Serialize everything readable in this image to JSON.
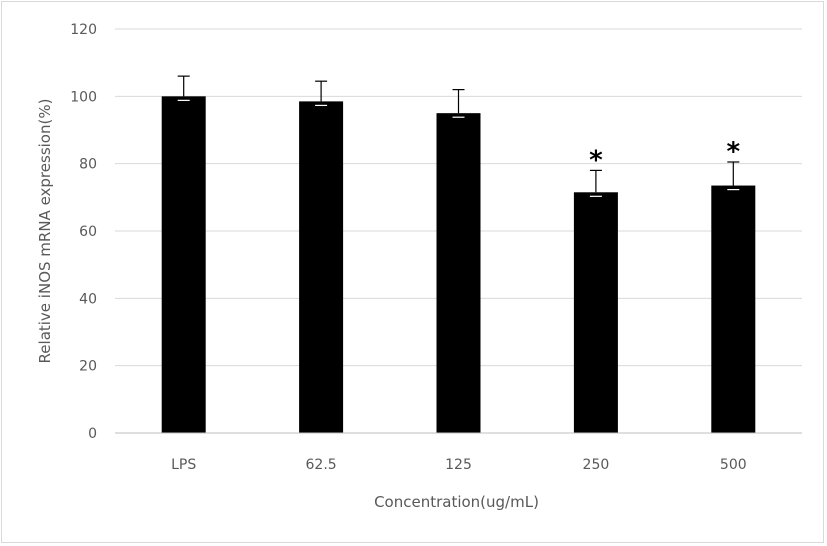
{
  "chart_data": {
    "type": "bar",
    "title": "",
    "xlabel": "Concentration(ug/mL)",
    "ylabel": "Relative iNOS mRNA expression(%)",
    "categories": [
      "LPS",
      "62.5",
      "125",
      "250",
      "500"
    ],
    "values": [
      100,
      98.5,
      95,
      71.5,
      73.5
    ],
    "error_upper": [
      6,
      6,
      7,
      6.5,
      7
    ],
    "error_lower": [
      1.2,
      1.2,
      1.2,
      1.2,
      1.2
    ],
    "annotations": [
      "",
      "",
      "",
      "*",
      "*"
    ],
    "ylim": [
      0,
      120
    ],
    "yticks": [
      0,
      20,
      40,
      60,
      80,
      100,
      120
    ],
    "grid": true,
    "legend": "none",
    "colors": {
      "bar": "#000000",
      "grid": "#d9d9d9",
      "axis": "#bfbfbf",
      "text": "#595959"
    }
  }
}
